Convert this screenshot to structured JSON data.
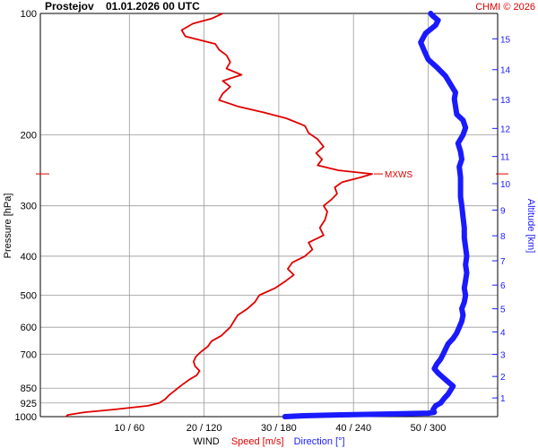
{
  "header": {
    "station": "Prostejov",
    "datetime": "01.01.2026 00 UTC",
    "credit": "CHMI © 2026"
  },
  "chart_data": {
    "type": "line",
    "y_axis": {
      "label": "Pressure [hPa]",
      "scale": "log",
      "range": [
        1000,
        100
      ],
      "ticks": [
        100,
        200,
        300,
        400,
        500,
        600,
        700,
        850,
        925,
        1000
      ]
    },
    "y2_axis": {
      "label": "Altitude [km]",
      "ticks": [
        1,
        2,
        3,
        4,
        5,
        6,
        7,
        8,
        9,
        10,
        11,
        12,
        13,
        14,
        15
      ]
    },
    "x_axis": {
      "ticks": [
        "10 / 60",
        "20 / 120",
        "30 / 180",
        "40 / 240",
        "50 / 300"
      ],
      "title_parts": [
        "WIND",
        "Speed [m/s]",
        "Direction [°]"
      ]
    },
    "series": [
      {
        "name": "Speed [m/s]",
        "color": "#e00000",
        "unit": "m/s",
        "points": [
          [
            1000,
            1.5
          ],
          [
            990,
            1.8
          ],
          [
            975,
            4.0
          ],
          [
            960,
            8.0
          ],
          [
            940,
            12.5
          ],
          [
            925,
            14.0
          ],
          [
            905,
            14.8
          ],
          [
            885,
            15.3
          ],
          [
            870,
            15.8
          ],
          [
            850,
            16.5
          ],
          [
            830,
            17.2
          ],
          [
            810,
            18.0
          ],
          [
            790,
            19.0
          ],
          [
            770,
            19.4
          ],
          [
            750,
            18.8
          ],
          [
            730,
            18.6
          ],
          [
            710,
            18.9
          ],
          [
            690,
            19.6
          ],
          [
            670,
            20.5
          ],
          [
            650,
            21.0
          ],
          [
            630,
            22.3
          ],
          [
            600,
            23.5
          ],
          [
            580,
            24.0
          ],
          [
            560,
            24.5
          ],
          [
            540,
            25.8
          ],
          [
            520,
            26.8
          ],
          [
            500,
            27.4
          ],
          [
            480,
            29.5
          ],
          [
            460,
            31.0
          ],
          [
            445,
            32.0
          ],
          [
            430,
            31.2
          ],
          [
            415,
            31.8
          ],
          [
            400,
            33.5
          ],
          [
            385,
            34.5
          ],
          [
            370,
            34.0
          ],
          [
            355,
            36.0
          ],
          [
            340,
            35.5
          ],
          [
            325,
            36.2
          ],
          [
            310,
            36.5
          ],
          [
            300,
            36.0
          ],
          [
            290,
            37.0
          ],
          [
            280,
            37.8
          ],
          [
            270,
            37.5
          ],
          [
            262,
            38.5
          ],
          [
            255,
            41.0
          ],
          [
            250,
            42.5
          ],
          [
            245,
            38.0
          ],
          [
            238,
            35.2
          ],
          [
            230,
            35.8
          ],
          [
            222,
            35.0
          ],
          [
            214,
            36.0
          ],
          [
            205,
            35.2
          ],
          [
            198,
            34.0
          ],
          [
            190,
            33.5
          ],
          [
            182,
            31.0
          ],
          [
            176,
            28.0
          ],
          [
            170,
            24.5
          ],
          [
            164,
            22.0
          ],
          [
            158,
            22.5
          ],
          [
            152,
            23.5
          ],
          [
            147,
            22.5
          ],
          [
            142,
            25.0
          ],
          [
            137,
            23.0
          ],
          [
            132,
            23.5
          ],
          [
            127,
            23.0
          ],
          [
            123,
            22.0
          ],
          [
            119,
            21.5
          ],
          [
            114,
            17.5
          ],
          [
            110,
            17.0
          ],
          [
            106,
            18.5
          ],
          [
            103,
            21.0
          ],
          [
            100,
            22.5
          ]
        ],
        "max_label": "MXWS",
        "max_pressure": 250
      },
      {
        "name": "Direction [°]",
        "color": "#1a1aff",
        "unit": "deg",
        "points": [
          [
            1000,
            185
          ],
          [
            995,
            200
          ],
          [
            990,
            230
          ],
          [
            985,
            270
          ],
          [
            980,
            300
          ],
          [
            975,
            305
          ],
          [
            960,
            304
          ],
          [
            940,
            306
          ],
          [
            925,
            310
          ],
          [
            900,
            313
          ],
          [
            880,
            316
          ],
          [
            860,
            318
          ],
          [
            840,
            320
          ],
          [
            820,
            316
          ],
          [
            800,
            312
          ],
          [
            780,
            308
          ],
          [
            760,
            305
          ],
          [
            740,
            307
          ],
          [
            720,
            310
          ],
          [
            700,
            312
          ],
          [
            680,
            314
          ],
          [
            660,
            316
          ],
          [
            640,
            320
          ],
          [
            620,
            323
          ],
          [
            600,
            325
          ],
          [
            580,
            327
          ],
          [
            560,
            328
          ],
          [
            540,
            327
          ],
          [
            520,
            329
          ],
          [
            500,
            330
          ],
          [
            480,
            329
          ],
          [
            460,
            330
          ],
          [
            440,
            331
          ],
          [
            420,
            330
          ],
          [
            400,
            331
          ],
          [
            380,
            330
          ],
          [
            360,
            329
          ],
          [
            340,
            329
          ],
          [
            320,
            328
          ],
          [
            300,
            327
          ],
          [
            285,
            326
          ],
          [
            270,
            326
          ],
          [
            255,
            326
          ],
          [
            240,
            325
          ],
          [
            230,
            327
          ],
          [
            220,
            326
          ],
          [
            210,
            324
          ],
          [
            200,
            328
          ],
          [
            192,
            330
          ],
          [
            184,
            328
          ],
          [
            178,
            323
          ],
          [
            170,
            322
          ],
          [
            163,
            321
          ],
          [
            157,
            322
          ],
          [
            150,
            318
          ],
          [
            143,
            314
          ],
          [
            136,
            307
          ],
          [
            130,
            300
          ],
          [
            124,
            297
          ],
          [
            118,
            294
          ],
          [
            112,
            298
          ],
          [
            107,
            306
          ],
          [
            104,
            308
          ],
          [
            101,
            303
          ],
          [
            100,
            302
          ]
        ]
      }
    ],
    "grid": true
  }
}
